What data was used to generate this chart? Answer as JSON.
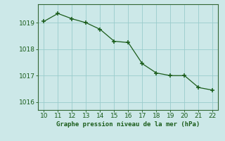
{
  "x": [
    10,
    11,
    12,
    13,
    14,
    15,
    16,
    17,
    18,
    19,
    20,
    21,
    22
  ],
  "y": [
    1019.05,
    1019.35,
    1019.15,
    1019.0,
    1018.75,
    1018.3,
    1018.25,
    1017.45,
    1017.1,
    1017.0,
    1017.0,
    1016.55,
    1016.45
  ],
  "line_color": "#1a5c1a",
  "marker_color": "#1a5c1a",
  "bg_color": "#cce8e8",
  "grid_color": "#99cccc",
  "xlabel": "Graphe pression niveau de la mer (hPa)",
  "xlabel_color": "#1a5c1a",
  "tick_color": "#1a5c1a",
  "spine_color": "#336633",
  "ylim": [
    1015.7,
    1019.7
  ],
  "yticks": [
    1016,
    1017,
    1018,
    1019
  ],
  "xlim": [
    9.6,
    22.4
  ],
  "xticks": [
    10,
    11,
    12,
    13,
    14,
    15,
    16,
    17,
    18,
    19,
    20,
    21,
    22
  ]
}
